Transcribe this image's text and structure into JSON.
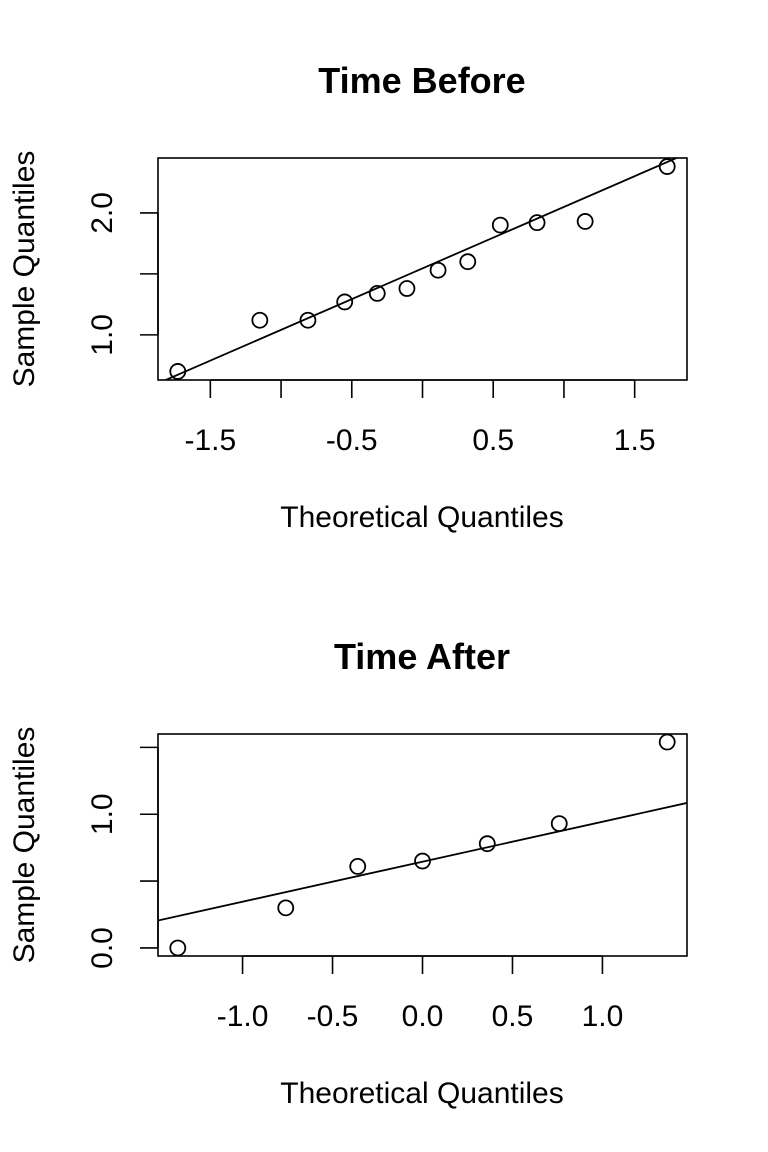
{
  "chart_data": [
    {
      "type": "scatter",
      "title": "Time Before",
      "xlabel": "Theoretical Quantiles",
      "ylabel": "Sample Quantiles",
      "xlim": [
        -1.87,
        1.87
      ],
      "ylim": [
        0.63,
        2.45
      ],
      "x_ticks": [
        -1.5,
        -1.0,
        -0.5,
        0.0,
        0.5,
        1.0,
        1.5
      ],
      "x_tick_labels": [
        "-1.5",
        "",
        "-0.5",
        "",
        "0.5",
        "",
        "1.5"
      ],
      "y_ticks": [
        1.0,
        1.5,
        2.0
      ],
      "y_tick_labels": [
        "1.0",
        "",
        "2.0"
      ],
      "grid": false,
      "points": [
        {
          "x": -1.73,
          "y": 0.7
        },
        {
          "x": -1.15,
          "y": 1.12
        },
        {
          "x": -0.81,
          "y": 1.12
        },
        {
          "x": -0.55,
          "y": 1.27
        },
        {
          "x": -0.32,
          "y": 1.34
        },
        {
          "x": -0.11,
          "y": 1.38
        },
        {
          "x": 0.11,
          "y": 1.53
        },
        {
          "x": 0.32,
          "y": 1.6
        },
        {
          "x": 0.55,
          "y": 1.9
        },
        {
          "x": 0.81,
          "y": 1.92
        },
        {
          "x": 1.15,
          "y": 1.93
        },
        {
          "x": 1.73,
          "y": 2.38
        }
      ],
      "reference_line": {
        "intercept": 1.545,
        "slope": 0.504
      }
    },
    {
      "type": "scatter",
      "title": "Time After",
      "xlabel": "Theoretical Quantiles",
      "ylabel": "Sample Quantiles",
      "xlim": [
        -1.47,
        1.47
      ],
      "ylim": [
        -0.06,
        1.6
      ],
      "x_ticks": [
        -1.0,
        -0.5,
        0.0,
        0.5,
        1.0
      ],
      "x_tick_labels": [
        "-1.0",
        "-0.5",
        "0.0",
        "0.5",
        "1.0"
      ],
      "y_ticks": [
        0.0,
        0.5,
        1.0,
        1.5
      ],
      "y_tick_labels": [
        "0.0",
        "",
        "1.0",
        ""
      ],
      "grid": false,
      "points": [
        {
          "x": -1.36,
          "y": 0.0
        },
        {
          "x": -0.76,
          "y": 0.3
        },
        {
          "x": -0.36,
          "y": 0.61
        },
        {
          "x": 0.0,
          "y": 0.65
        },
        {
          "x": 0.36,
          "y": 0.78
        },
        {
          "x": 0.76,
          "y": 0.93
        },
        {
          "x": 1.36,
          "y": 1.54
        }
      ],
      "reference_line": {
        "intercept": 0.645,
        "slope": 0.299
      }
    }
  ]
}
